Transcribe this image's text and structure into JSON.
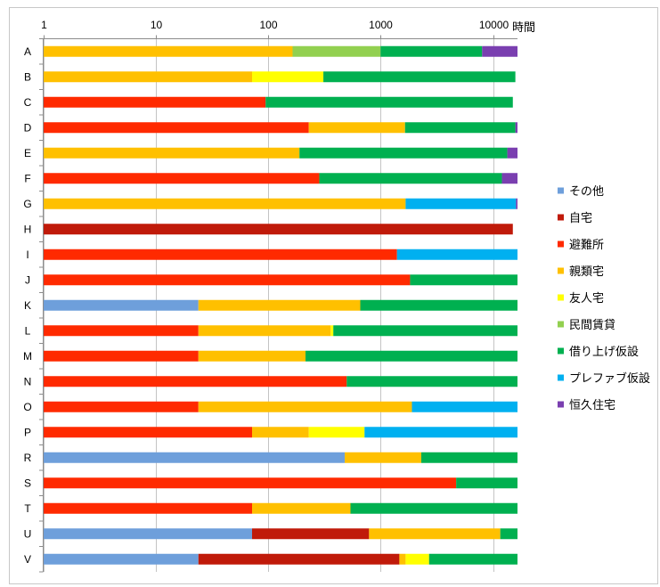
{
  "chart_data": {
    "type": "bar",
    "orientation": "horizontal",
    "stacked": true,
    "x_scale": "log",
    "xlim": [
      1,
      16500
    ],
    "xticks": [
      1,
      10,
      100,
      1000,
      10000
    ],
    "xlabel": "時間",
    "grid": true,
    "legend": "right",
    "categories": [
      "A",
      "B",
      "C",
      "D",
      "E",
      "F",
      "G",
      "H",
      "I",
      "J",
      "K",
      "L",
      "M",
      "N",
      "O",
      "P",
      "R",
      "S",
      "T",
      "U",
      "V"
    ],
    "series": [
      {
        "name": "その他",
        "color": "#6e9fdb",
        "values": [
          0,
          0,
          0,
          0,
          0,
          0,
          0,
          0,
          0,
          0,
          24,
          0,
          0,
          0,
          0,
          0,
          480,
          0,
          0,
          72,
          24
        ]
      },
      {
        "name": "自宅",
        "color": "#c01a0a",
        "values": [
          0,
          0,
          0,
          0,
          0,
          0,
          0,
          15000,
          0,
          0,
          0,
          0,
          0,
          0,
          0,
          0,
          0,
          0,
          0,
          718,
          1446
        ]
      },
      {
        "name": "避難所",
        "color": "#ff2a00",
        "values": [
          0,
          0,
          95,
          230,
          0,
          285,
          0,
          0,
          1400,
          1830,
          0,
          24,
          24,
          500,
          24,
          72,
          0,
          4700,
          72,
          0,
          0
        ]
      },
      {
        "name": "親類宅",
        "color": "#ffc000",
        "values": [
          165,
          72,
          0,
          1420,
          190,
          0,
          1670,
          0,
          0,
          0,
          636,
          336,
          191,
          0,
          1876,
          158,
          1820,
          0,
          468,
          10810,
          200
        ]
      },
      {
        "name": "友人宅",
        "color": "#ffff00",
        "values": [
          0,
          238,
          0,
          0,
          0,
          0,
          0,
          0,
          0,
          0,
          0,
          20,
          0,
          0,
          0,
          490,
          0,
          0,
          0,
          0,
          1030
        ]
      },
      {
        "name": "民間賃貸",
        "color": "#92d050",
        "values": [
          835,
          0,
          0,
          0,
          0,
          0,
          0,
          0,
          0,
          0,
          0,
          0,
          0,
          0,
          0,
          0,
          0,
          0,
          0,
          0,
          0
        ]
      },
      {
        "name": "借り上げ仮設",
        "color": "#00b050",
        "values": [
          7000,
          15490,
          14905,
          14150,
          13210,
          11715,
          0,
          0,
          0,
          14670,
          15840,
          16120,
          16285,
          16000,
          0,
          0,
          14200,
          11800,
          15960,
          4900,
          13800
        ]
      },
      {
        "name": "プレファブ仮設",
        "color": "#00b0f0",
        "values": [
          0,
          0,
          0,
          0,
          0,
          0,
          14330,
          0,
          15100,
          0,
          0,
          0,
          0,
          0,
          14600,
          15780,
          0,
          0,
          0,
          0,
          0
        ]
      },
      {
        "name": "恒久住宅",
        "color": "#7a3fb0",
        "values": [
          8500,
          0,
          0,
          700,
          3100,
          4500,
          500,
          0,
          0,
          0,
          0,
          0,
          0,
          0,
          0,
          0,
          0,
          0,
          0,
          0,
          0
        ]
      }
    ]
  }
}
